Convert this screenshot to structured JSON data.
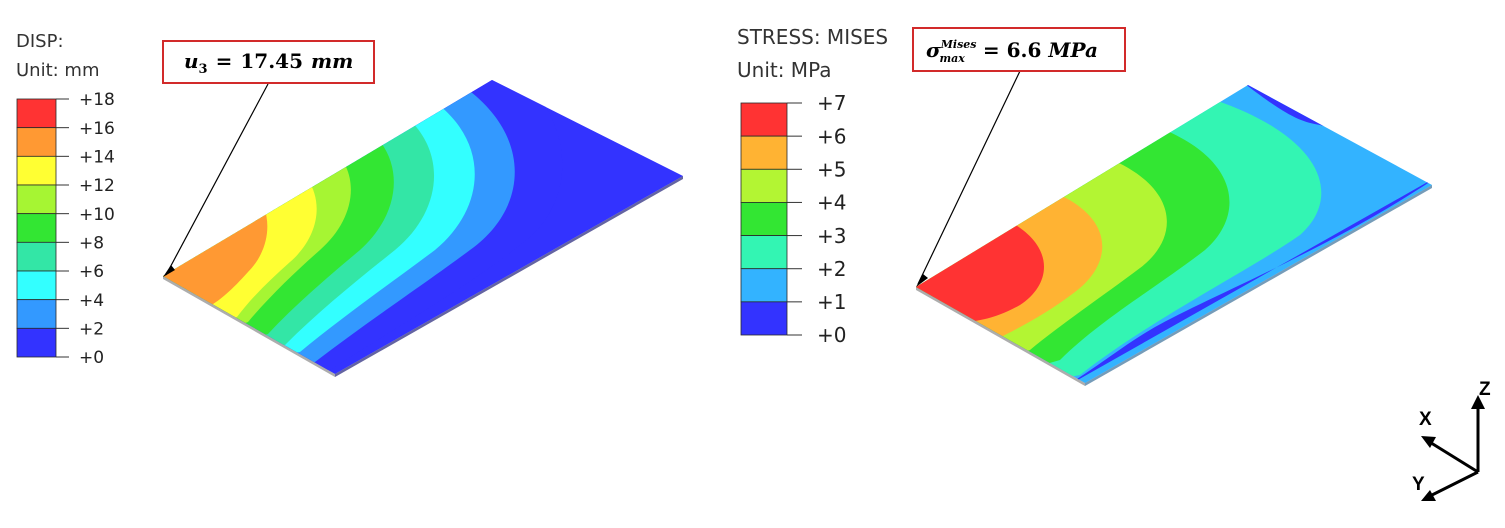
{
  "left_panel": {
    "legend": {
      "title": "DISP:",
      "unit_label": "Unit: mm",
      "tick_labels": [
        "+18",
        "+16",
        "+14",
        "+12",
        "+10",
        "+8",
        "+6",
        "+4",
        "+2",
        "+0"
      ],
      "band_colors": [
        "#ff3333",
        "#ff9933",
        "#ffff33",
        "#a6f533",
        "#33e633",
        "#33e6a6",
        "#33ffff",
        "#3399ff",
        "#3333ff"
      ]
    },
    "callout": {
      "symbol": "u",
      "subscript": "3",
      "equals": "=",
      "value": "17.45",
      "unit": "mm"
    },
    "contour_colors": [
      "#ff3333",
      "#ff9933",
      "#ffff33",
      "#a6f533",
      "#33e633",
      "#33e6a6",
      "#33ffff",
      "#3399ff",
      "#3333ff"
    ]
  },
  "right_panel": {
    "legend": {
      "title": "STRESS: MISES",
      "unit_label": "Unit: MPa",
      "tick_labels": [
        "+7",
        "+6",
        "+5",
        "+4",
        "+3",
        "+2",
        "+1",
        "+0"
      ],
      "band_colors": [
        "#ff3333",
        "#ffb333",
        "#b3f533",
        "#33e633",
        "#33f5b3",
        "#33b3ff",
        "#3333ff"
      ]
    },
    "callout": {
      "symbol": "σ",
      "superscript": "Mises",
      "subscript": "max",
      "equals": "=",
      "value": "6.6",
      "unit": "MPa"
    },
    "contour_colors": [
      "#ff3333",
      "#ffb333",
      "#b3f533",
      "#33e633",
      "#33f5b3",
      "#33b3ff",
      "#3333ff"
    ]
  },
  "axis_triad": {
    "x_label": "X",
    "y_label": "Y",
    "z_label": "Z"
  }
}
